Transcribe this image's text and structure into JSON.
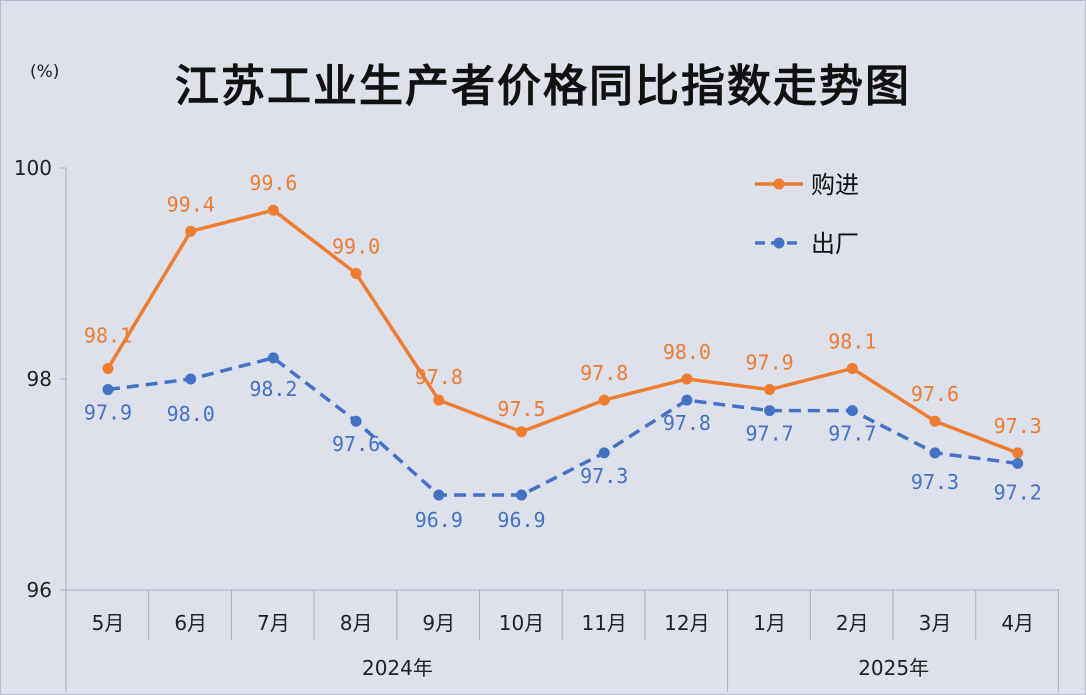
{
  "title": "江苏工业生产者价格同比指数走势图",
  "unit": "(%)",
  "colors": {
    "purchase": "#ee7d31",
    "factory": "#4472c4"
  },
  "chart_data": {
    "type": "line",
    "title": "江苏工业生产者价格同比指数走势图",
    "ylabel": "(%)",
    "ylim": [
      96,
      100
    ],
    "yticks": [
      "96",
      "98",
      "100"
    ],
    "categories": [
      "5月",
      "6月",
      "7月",
      "8月",
      "9月",
      "10月",
      "11月",
      "12月",
      "1月",
      "2月",
      "3月",
      "4月"
    ],
    "year_groups": [
      {
        "label": "2024年",
        "start": 0,
        "end": 7
      },
      {
        "label": "2025年",
        "start": 8,
        "end": 11
      }
    ],
    "series": [
      {
        "name": "购进",
        "style": "solid",
        "color": "#ee7d31",
        "values": [
          98.1,
          99.4,
          99.6,
          99.0,
          97.8,
          97.5,
          97.8,
          98.0,
          97.9,
          98.1,
          97.6,
          97.3
        ],
        "labels": [
          "98.1",
          "99.4",
          "99.6",
          "99.0",
          "97.8",
          "97.5",
          "97.8",
          "98.0",
          "97.9",
          "98.1",
          "97.6",
          "97.3"
        ]
      },
      {
        "name": "出厂",
        "style": "dashed",
        "color": "#4472c4",
        "values": [
          97.9,
          98.0,
          98.2,
          97.6,
          96.9,
          96.9,
          97.3,
          97.8,
          97.7,
          97.7,
          97.3,
          97.2
        ],
        "labels": [
          "97.9",
          "98.0",
          "98.2",
          "97.6",
          "96.9",
          "96.9",
          "97.3",
          "97.8",
          "97.7",
          "97.7",
          "97.3",
          "97.2"
        ]
      }
    ],
    "legend": "top-right",
    "grid": false
  }
}
